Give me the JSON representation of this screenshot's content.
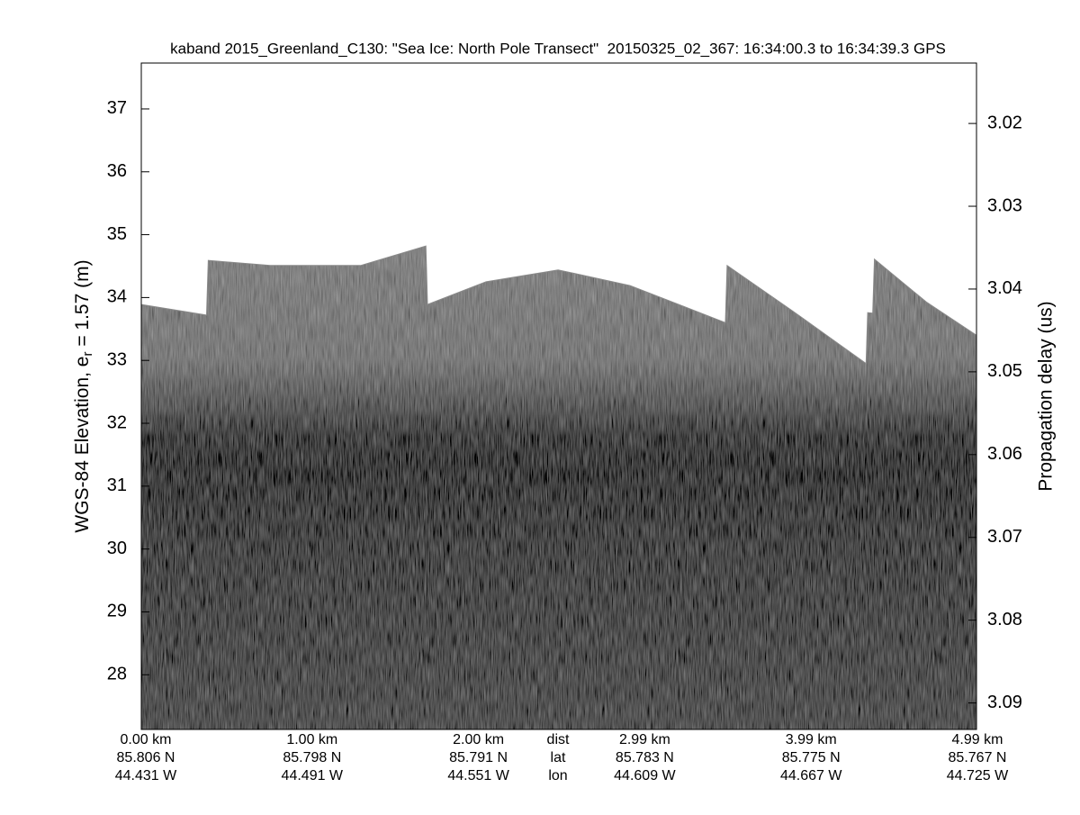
{
  "chart_data": {
    "type": "echogram",
    "title": "kaband 2015_Greenland_C130: \"Sea Ice: North Pole Transect\"  20150325_02_367: 16:34:00.3 to 16:34:39.3 GPS",
    "ylabel": {
      "text": "WGS-84 Elevation, e",
      "subscript": "r",
      "suffix": " = 1.57 (m)"
    },
    "ylim": [
      27.13,
      37.73
    ],
    "yticks": [
      28,
      29,
      30,
      31,
      32,
      33,
      34,
      35,
      36,
      37
    ],
    "y2label": "Propagation delay (us)",
    "y2lim": [
      3.0127,
      3.0932
    ],
    "y2ticks": [
      3.02,
      3.03,
      3.04,
      3.05,
      3.06,
      3.07,
      3.08,
      3.09
    ],
    "x_rows": [
      {
        "name": "dist",
        "labels": [
          "0.00 km",
          "1.00 km",
          "2.00 km",
          "2.99 km",
          "3.99 km",
          "4.99 km"
        ]
      },
      {
        "name": "lat",
        "labels": [
          "85.806 N",
          "85.798 N",
          "85.791 N",
          "85.783 N",
          "85.775 N",
          "85.767 N"
        ]
      },
      {
        "name": "lon",
        "labels": [
          "44.431 W",
          "44.491 W",
          "44.551 W",
          "44.609 W",
          "44.667 W",
          "44.725 W"
        ]
      }
    ],
    "xlim": [
      0,
      4.99
    ],
    "surface": {
      "x": [
        0,
        0.39,
        0.4,
        0.77,
        1.31,
        1.7,
        1.71,
        2.06,
        2.49,
        2.92,
        3.49,
        3.5,
        3.89,
        4.33,
        4.34,
        4.37,
        4.38,
        4.69,
        4.99
      ],
      "y": [
        33.89,
        33.72,
        34.59,
        34.51,
        34.51,
        34.82,
        33.89,
        34.25,
        34.44,
        34.19,
        33.6,
        34.51,
        33.79,
        32.95,
        33.76,
        33.75,
        34.61,
        33.93,
        33.4
      ]
    }
  }
}
